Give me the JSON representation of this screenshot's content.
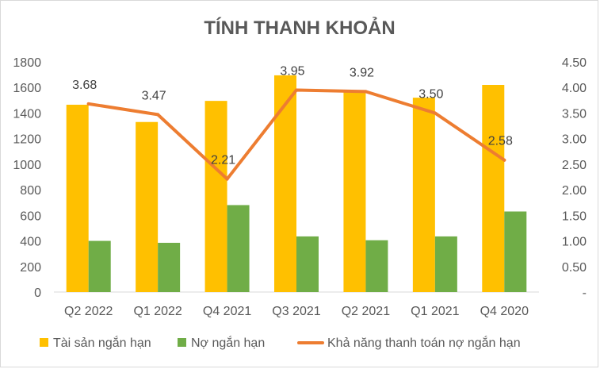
{
  "chart_data": {
    "type": "bar",
    "title": "TÍNH THANH KHOẢN",
    "categories": [
      "Q2 2022",
      "Q1 2022",
      "Q4 2021",
      "Q3 2021",
      "Q2 2021",
      "Q1 2021",
      "Q4 2020"
    ],
    "series": [
      {
        "name": "Tài sản ngắn hạn",
        "type": "bar",
        "axis": "left",
        "color": "#ffc000",
        "values": [
          1465,
          1330,
          1495,
          1695,
          1580,
          1520,
          1620
        ]
      },
      {
        "name": "Nợ ngắn hạn",
        "type": "bar",
        "axis": "left",
        "color": "#70ad47",
        "values": [
          400,
          385,
          680,
          435,
          405,
          435,
          630
        ]
      },
      {
        "name": "Khả năng thanh toán nợ ngắn hạn",
        "type": "line",
        "axis": "right",
        "color": "#ed7d31",
        "values": [
          3.68,
          3.47,
          2.21,
          3.95,
          3.92,
          3.5,
          2.58
        ],
        "labels": [
          "3.68",
          "3.47",
          "2.21",
          "3.95",
          "3.92",
          "3.50",
          "2.58"
        ]
      }
    ],
    "y_left": {
      "min": 0,
      "max": 1800,
      "ticks": [
        "0",
        "200",
        "400",
        "600",
        "800",
        "1000",
        "1200",
        "1400",
        "1600",
        "1800"
      ]
    },
    "y_right": {
      "min": 0,
      "max": 4.5,
      "ticks": [
        "-",
        "0.50",
        "1.00",
        "1.50",
        "2.00",
        "2.50",
        "3.00",
        "3.50",
        "4.00",
        "4.50"
      ]
    },
    "grid": false,
    "legend": "bottom"
  }
}
